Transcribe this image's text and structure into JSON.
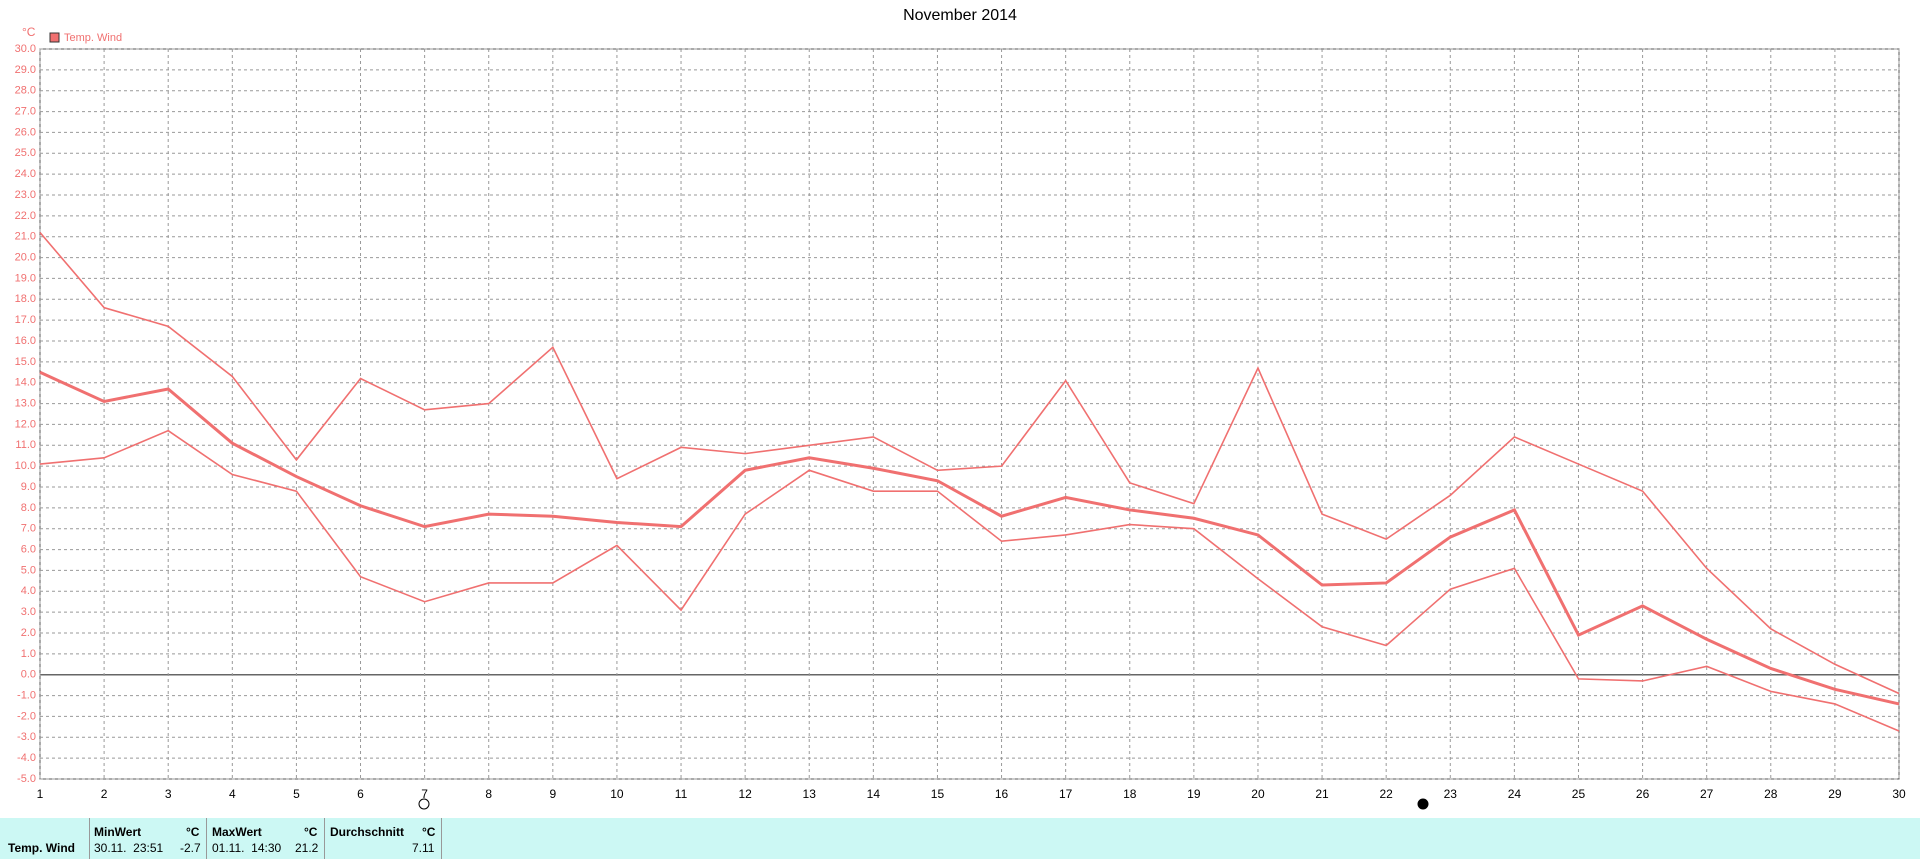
{
  "chart_data": {
    "type": "line",
    "title": "November 2014",
    "y_label": "°C",
    "legend": "top-left",
    "grid": true,
    "x": [
      1,
      2,
      3,
      4,
      5,
      6,
      7,
      8,
      9,
      10,
      11,
      12,
      13,
      14,
      15,
      16,
      17,
      18,
      19,
      20,
      21,
      22,
      23,
      24,
      25,
      26,
      27,
      28,
      29,
      30
    ],
    "xlim": [
      1,
      30
    ],
    "xticks": [
      1,
      2,
      3,
      4,
      5,
      6,
      7,
      8,
      9,
      10,
      11,
      12,
      13,
      14,
      15,
      16,
      17,
      18,
      19,
      20,
      21,
      22,
      23,
      24,
      25,
      26,
      27,
      28,
      29,
      30
    ],
    "ylim": [
      -5,
      30
    ],
    "yticks": [
      {
        "value": 30,
        "label": "30.0"
      },
      {
        "value": 29,
        "label": "29.0"
      },
      {
        "value": 28,
        "label": "28.0"
      },
      {
        "value": 27,
        "label": "27.0"
      },
      {
        "value": 26,
        "label": "26.0"
      },
      {
        "value": 25,
        "label": "25.0"
      },
      {
        "value": 24,
        "label": "24.0"
      },
      {
        "value": 23,
        "label": "23.0"
      },
      {
        "value": 22,
        "label": "22.0"
      },
      {
        "value": 21,
        "label": "21.0"
      },
      {
        "value": 20,
        "label": "20.0"
      },
      {
        "value": 19,
        "label": "19.0"
      },
      {
        "value": 18,
        "label": "18.0"
      },
      {
        "value": 17,
        "label": "17.0"
      },
      {
        "value": 16,
        "label": "16.0"
      },
      {
        "value": 15,
        "label": "15.0"
      },
      {
        "value": 14,
        "label": "14.0"
      },
      {
        "value": 13,
        "label": "13.0"
      },
      {
        "value": 12,
        "label": "12.0"
      },
      {
        "value": 11,
        "label": "11.0"
      },
      {
        "value": 10,
        "label": "10.0"
      },
      {
        "value": 9,
        "label": "9.0"
      },
      {
        "value": 8,
        "label": "8.0"
      },
      {
        "value": 7,
        "label": "7.0"
      },
      {
        "value": 6,
        "label": "6.0"
      },
      {
        "value": 5,
        "label": "5.0"
      },
      {
        "value": 4,
        "label": "4.0"
      },
      {
        "value": 3,
        "label": "3.0"
      },
      {
        "value": 2,
        "label": "2.0"
      },
      {
        "value": 1,
        "label": "1.0"
      },
      {
        "value": 0,
        "label": "0.0"
      },
      {
        "value": -1,
        "label": "-1.0"
      },
      {
        "value": -2,
        "label": "-2.0"
      },
      {
        "value": -3,
        "label": "-3.0"
      },
      {
        "value": -4,
        "label": "-4.0"
      },
      {
        "value": -5,
        "label": "-5.0"
      }
    ],
    "series": [
      {
        "name": "Temp. Wind",
        "color": "#f07070",
        "values": [
          14.5,
          13.1,
          13.7,
          11.1,
          9.5,
          8.1,
          7.1,
          7.7,
          7.6,
          7.3,
          7.1,
          9.8,
          10.4,
          9.9,
          9.3,
          7.6,
          8.5,
          7.9,
          7.5,
          6.7,
          4.3,
          4.4,
          6.6,
          7.9,
          1.9,
          3.3,
          1.7,
          0.3,
          -0.7,
          -1.4
        ]
      },
      {
        "color": "#f07070",
        "values": [
          21.2,
          17.6,
          16.7,
          14.3,
          10.3,
          14.2,
          12.7,
          13.0,
          15.7,
          9.4,
          10.9,
          10.6,
          11.0,
          11.4,
          9.8,
          10.0,
          14.1,
          9.2,
          8.2,
          14.7,
          7.7,
          6.5,
          8.6,
          11.4,
          10.1,
          8.8,
          5.1,
          2.2,
          0.5,
          -0.9
        ]
      },
      {
        "color": "#f07070",
        "values": [
          10.1,
          10.4,
          11.7,
          9.6,
          8.8,
          4.7,
          3.5,
          4.4,
          4.4,
          6.2,
          3.1,
          7.7,
          9.8,
          8.8,
          8.8,
          6.4,
          6.7,
          7.2,
          7.0,
          4.6,
          2.3,
          1.4,
          4.1,
          5.1,
          -0.2,
          -0.3,
          0.4,
          -0.8,
          -1.4,
          -2.7
        ]
      }
    ]
  },
  "table": {
    "header": [
      "MinWert",
      "°C",
      "MaxWert",
      "°C",
      "Durchschnitt",
      "°C"
    ],
    "rows": [
      [
        "Temp. Wind",
        "30.11.  23:51",
        "-2.7",
        "01.11.  14:30",
        "21.2",
        "7.11"
      ]
    ]
  }
}
